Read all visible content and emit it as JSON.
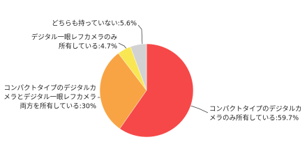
{
  "chart_data": {
    "type": "pie",
    "labels": [
      [
        "コンパクトタイプのデジタルカ",
        "メラのみ所有している:59.7%"
      ],
      [
        "コンパクトタイプのデジタルカ",
        "メラとデジタル一眼レフカメラ",
        "両方を所有している:30%"
      ],
      [
        "デジタル一眼レフカメラのみ",
        "所有している:4.7%"
      ],
      [
        "どちらも持っていない:5.6%"
      ]
    ],
    "values": [
      59.7,
      30,
      4.7,
      5.6
    ],
    "colors": [
      "#f64848",
      "#f8a444",
      "#f9e653",
      "#d2d2d2"
    ]
  }
}
